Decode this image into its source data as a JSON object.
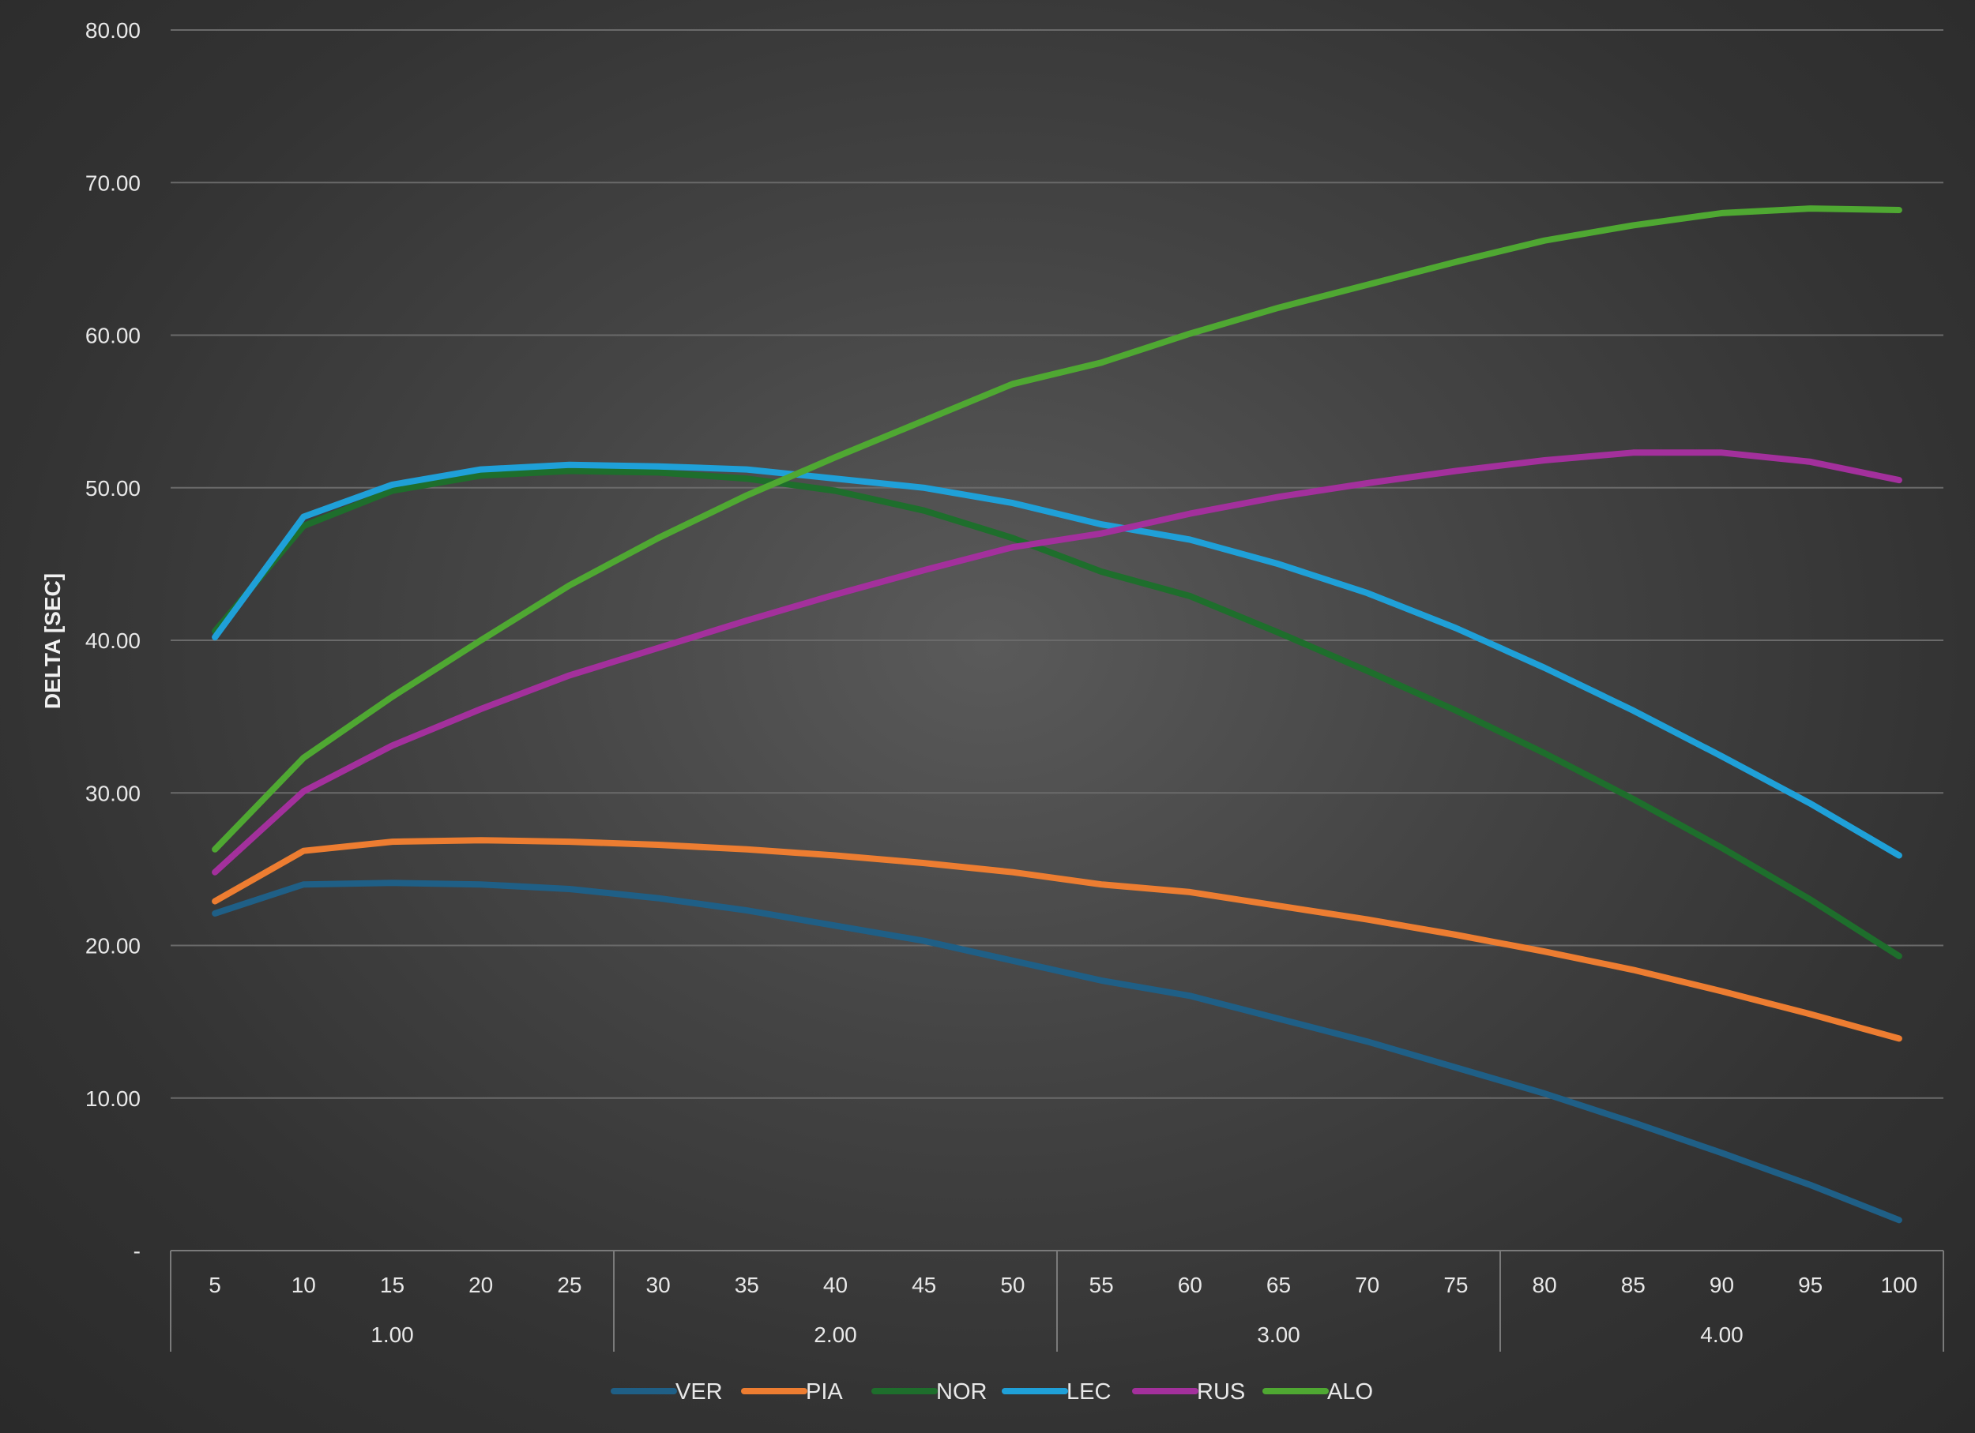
{
  "chart_data": {
    "type": "line",
    "title": "",
    "xlabel": "",
    "ylabel": "DELTA [SEC]",
    "ylim": [
      0,
      80
    ],
    "y_ticks": [
      0,
      10,
      20,
      30,
      40,
      50,
      60,
      70,
      80
    ],
    "y_tick_labels": [
      "-",
      "10.00",
      "20.00",
      "30.00",
      "40.00",
      "50.00",
      "60.00",
      "70.00",
      "80.00"
    ],
    "grid": true,
    "legend_position": "bottom",
    "categories": [
      "5",
      "10",
      "15",
      "20",
      "25",
      "30",
      "35",
      "40",
      "45",
      "50",
      "55",
      "60",
      "65",
      "70",
      "75",
      "80",
      "85",
      "90",
      "95",
      "100"
    ],
    "category_groups": [
      {
        "label": "1.00",
        "count": 5
      },
      {
        "label": "2.00",
        "count": 5
      },
      {
        "label": "3.00",
        "count": 5
      },
      {
        "label": "4.00",
        "count": 5
      }
    ],
    "series": [
      {
        "name": "VER",
        "color": "#1f5f86",
        "values": [
          22.1,
          24.0,
          24.1,
          24.0,
          23.7,
          23.1,
          22.3,
          21.3,
          20.3,
          19.0,
          17.7,
          16.7,
          15.2,
          13.7,
          12.0,
          10.3,
          8.4,
          6.4,
          4.3,
          2.0
        ]
      },
      {
        "name": "PIA",
        "color": "#ed7d31",
        "values": [
          22.9,
          26.2,
          26.8,
          26.9,
          26.8,
          26.6,
          26.3,
          25.9,
          25.4,
          24.8,
          24.0,
          23.5,
          22.6,
          21.7,
          20.7,
          19.6,
          18.4,
          17.0,
          15.5,
          13.9
        ]
      },
      {
        "name": "NOR",
        "color": "#1e6e2c",
        "values": [
          40.6,
          47.5,
          49.8,
          50.8,
          51.1,
          51.0,
          50.6,
          49.8,
          48.5,
          46.7,
          44.5,
          42.9,
          40.5,
          38.0,
          35.4,
          32.6,
          29.6,
          26.4,
          23.0,
          19.3
        ]
      },
      {
        "name": "LEC",
        "color": "#1fa0d8",
        "values": [
          40.2,
          48.1,
          50.2,
          51.2,
          51.5,
          51.4,
          51.2,
          50.6,
          50.0,
          49.0,
          47.6,
          46.6,
          45.0,
          43.1,
          40.8,
          38.2,
          35.4,
          32.4,
          29.3,
          25.9
        ]
      },
      {
        "name": "RUS",
        "color": "#a3309c",
        "values": [
          24.8,
          30.1,
          33.1,
          35.5,
          37.7,
          39.5,
          41.3,
          43.0,
          44.6,
          46.1,
          47.0,
          48.3,
          49.4,
          50.3,
          51.1,
          51.8,
          52.3,
          52.3,
          51.7,
          50.5
        ]
      },
      {
        "name": "ALO",
        "color": "#4fa832",
        "values": [
          26.3,
          32.3,
          36.3,
          40.0,
          43.6,
          46.7,
          49.5,
          52.0,
          54.4,
          56.8,
          58.2,
          60.1,
          61.8,
          63.3,
          64.8,
          66.2,
          67.2,
          68.0,
          68.3,
          68.2
        ]
      }
    ]
  }
}
